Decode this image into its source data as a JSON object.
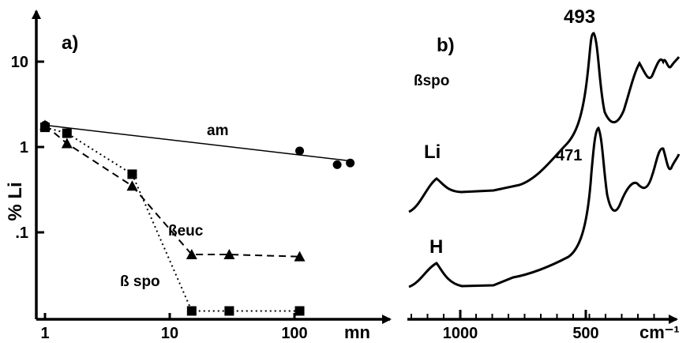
{
  "chart_data": [
    {
      "panel": "a)",
      "type": "scatter",
      "xlabel": "mn",
      "ylabel": "% Li",
      "x_scale": "log",
      "y_scale": "log",
      "xlim": [
        1,
        300
      ],
      "ylim": [
        0.01,
        20
      ],
      "x_ticks": [
        {
          "value": 1,
          "label": "1"
        },
        {
          "value": 10,
          "label": "10"
        },
        {
          "value": 100,
          "label": "100"
        }
      ],
      "y_ticks": [
        {
          "value": 10,
          "label": "10"
        },
        {
          "value": 1,
          "label": "1"
        },
        {
          "value": 0.1,
          "label": ".1"
        }
      ],
      "series": [
        {
          "name": "am",
          "marker": "circle",
          "line": "solid-fit",
          "points": [
            [
              1,
              1.8
            ],
            [
              110,
              0.9
            ],
            [
              220,
              0.62
            ],
            [
              280,
              0.65
            ]
          ],
          "fit": [
            [
              1,
              1.8
            ],
            [
              300,
              0.68
            ]
          ]
        },
        {
          "name": "ßeuc",
          "marker": "triangle",
          "line": "dashed",
          "points": [
            [
              1,
              1.8
            ],
            [
              1.5,
              1.1
            ],
            [
              5,
              0.35
            ],
            [
              15,
              0.055
            ],
            [
              30,
              0.055
            ],
            [
              110,
              0.052
            ]
          ]
        },
        {
          "name": "ß spo",
          "marker": "square",
          "line": "dotted",
          "points": [
            [
              1,
              1.7
            ],
            [
              1.5,
              1.45
            ],
            [
              5,
              0.48
            ],
            [
              15,
              0.012
            ],
            [
              30,
              0.012
            ],
            [
              110,
              0.012
            ]
          ]
        }
      ]
    },
    {
      "panel": "b)",
      "type": "line",
      "xlabel": "cm⁻¹",
      "x_ticks": [
        {
          "value": 1000,
          "label": "1000"
        },
        {
          "value": 500,
          "label": "500"
        }
      ],
      "title_label": "ßspo",
      "annotations": [
        {
          "text": "493",
          "at_cm": 493
        },
        {
          "text": "471",
          "at_cm": 471
        }
      ],
      "series": [
        {
          "name": "Li",
          "peaks_cm": [
            1100,
            493
          ]
        },
        {
          "name": "H",
          "peaks_cm": [
            1100,
            471
          ]
        }
      ]
    }
  ]
}
